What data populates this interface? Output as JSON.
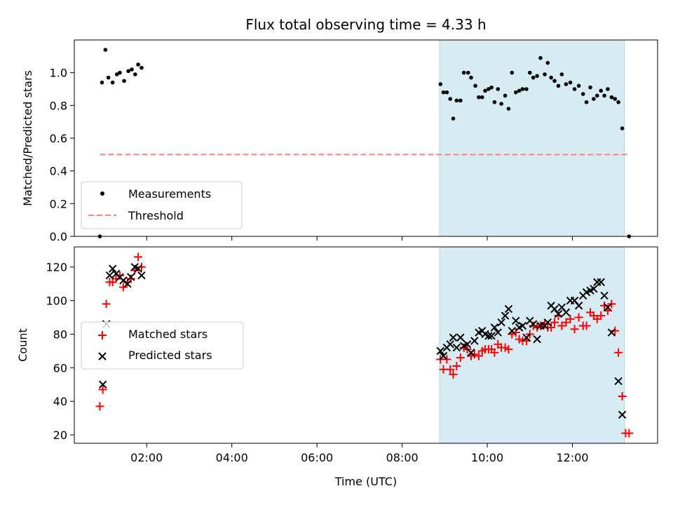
{
  "chart_data": {
    "title": "Flux total observing time = 4.33 h",
    "xlabel": "Time (UTC)",
    "x_ticks": [
      "02:00",
      "04:00",
      "06:00",
      "08:00",
      "10:00",
      "12:00"
    ],
    "x_tick_hours": [
      2,
      4,
      6,
      8,
      10,
      12
    ],
    "xlim_hours": [
      0.3,
      14.0
    ],
    "highlight_span_hours": [
      8.88,
      13.22
    ],
    "highlight_color": "#add8e6",
    "top": {
      "type": "scatter",
      "ylabel": "Matched/Predicted stars",
      "ylim": [
        0,
        1.2
      ],
      "y_ticks": [
        "0.0",
        "0.2",
        "0.4",
        "0.6",
        "0.8",
        "1.0"
      ],
      "y_tick_values": [
        0,
        0.2,
        0.4,
        0.6,
        0.8,
        1.0
      ],
      "legend": [
        "Measurements",
        "Threshold"
      ],
      "threshold": {
        "value": 0.5,
        "x_range_hours": [
          0.9,
          13.33
        ],
        "color": "#ff7f7f"
      },
      "measurement_color": "#000000",
      "measurements": [
        [
          0.9,
          0.0
        ],
        [
          0.95,
          0.94
        ],
        [
          1.03,
          1.14
        ],
        [
          1.1,
          0.97
        ],
        [
          1.2,
          0.94
        ],
        [
          1.3,
          0.99
        ],
        [
          1.37,
          1.0
        ],
        [
          1.47,
          0.95
        ],
        [
          1.57,
          1.01
        ],
        [
          1.65,
          1.02
        ],
        [
          1.73,
          0.99
        ],
        [
          1.8,
          1.05
        ],
        [
          1.88,
          1.03
        ],
        [
          8.9,
          0.93
        ],
        [
          8.97,
          0.88
        ],
        [
          9.05,
          0.88
        ],
        [
          9.13,
          0.84
        ],
        [
          9.2,
          0.72
        ],
        [
          9.28,
          0.83
        ],
        [
          9.37,
          0.83
        ],
        [
          9.45,
          1.0
        ],
        [
          9.55,
          1.0
        ],
        [
          9.62,
          0.97
        ],
        [
          9.72,
          0.92
        ],
        [
          9.8,
          0.85
        ],
        [
          9.88,
          0.85
        ],
        [
          9.95,
          0.89
        ],
        [
          10.03,
          0.9
        ],
        [
          10.1,
          0.91
        ],
        [
          10.17,
          0.82
        ],
        [
          10.25,
          0.9
        ],
        [
          10.33,
          0.81
        ],
        [
          10.42,
          0.86
        ],
        [
          10.5,
          0.78
        ],
        [
          10.58,
          1.0
        ],
        [
          10.67,
          0.88
        ],
        [
          10.75,
          0.89
        ],
        [
          10.83,
          0.9
        ],
        [
          10.92,
          0.9
        ],
        [
          11.0,
          1.0
        ],
        [
          11.08,
          0.97
        ],
        [
          11.17,
          0.98
        ],
        [
          11.25,
          1.09
        ],
        [
          11.35,
          0.99
        ],
        [
          11.42,
          1.06
        ],
        [
          11.5,
          0.97
        ],
        [
          11.58,
          0.95
        ],
        [
          11.67,
          0.92
        ],
        [
          11.75,
          0.99
        ],
        [
          11.85,
          0.93
        ],
        [
          11.95,
          0.94
        ],
        [
          12.05,
          0.9
        ],
        [
          12.15,
          0.92
        ],
        [
          12.25,
          0.87
        ],
        [
          12.33,
          0.82
        ],
        [
          12.42,
          0.91
        ],
        [
          12.5,
          0.84
        ],
        [
          12.58,
          0.86
        ],
        [
          12.67,
          0.89
        ],
        [
          12.75,
          0.86
        ],
        [
          12.83,
          0.9
        ],
        [
          12.92,
          0.85
        ],
        [
          13.0,
          0.84
        ],
        [
          13.08,
          0.82
        ],
        [
          13.17,
          0.66
        ],
        [
          13.33,
          0.0
        ]
      ]
    },
    "bottom": {
      "type": "scatter",
      "ylabel": "Count",
      "ylim": [
        15,
        132
      ],
      "y_ticks": [
        "20",
        "40",
        "60",
        "80",
        "100",
        "120"
      ],
      "y_tick_values": [
        20,
        40,
        60,
        80,
        100,
        120
      ],
      "legend": [
        "Matched stars",
        "Predicted stars"
      ],
      "matched_color": "#ff0000",
      "predicted_color": "#000000",
      "matched": [
        [
          0.9,
          37
        ],
        [
          0.97,
          47
        ],
        [
          1.05,
          98
        ],
        [
          1.13,
          111
        ],
        [
          1.2,
          111
        ],
        [
          1.28,
          113
        ],
        [
          1.37,
          115
        ],
        [
          1.45,
          108
        ],
        [
          1.55,
          111
        ],
        [
          1.63,
          113
        ],
        [
          1.72,
          118
        ],
        [
          1.8,
          126
        ],
        [
          1.88,
          120
        ],
        [
          8.9,
          65
        ],
        [
          8.97,
          59
        ],
        [
          9.05,
          65
        ],
        [
          9.13,
          59
        ],
        [
          9.2,
          56
        ],
        [
          9.28,
          61
        ],
        [
          9.37,
          66
        ],
        [
          9.45,
          72
        ],
        [
          9.53,
          71
        ],
        [
          9.62,
          67
        ],
        [
          9.7,
          68
        ],
        [
          9.8,
          67
        ],
        [
          9.88,
          70
        ],
        [
          9.95,
          71
        ],
        [
          10.03,
          71
        ],
        [
          10.1,
          71
        ],
        [
          10.17,
          69
        ],
        [
          10.25,
          74
        ],
        [
          10.33,
          72
        ],
        [
          10.42,
          72
        ],
        [
          10.5,
          71
        ],
        [
          10.58,
          80
        ],
        [
          10.67,
          81
        ],
        [
          10.75,
          77
        ],
        [
          10.83,
          76
        ],
        [
          10.92,
          76
        ],
        [
          11.0,
          80
        ],
        [
          11.08,
          85
        ],
        [
          11.17,
          84
        ],
        [
          11.25,
          85
        ],
        [
          11.35,
          86
        ],
        [
          11.42,
          84
        ],
        [
          11.5,
          84
        ],
        [
          11.58,
          87
        ],
        [
          11.67,
          91
        ],
        [
          11.75,
          85
        ],
        [
          11.85,
          87
        ],
        [
          11.95,
          89
        ],
        [
          12.05,
          83
        ],
        [
          12.15,
          90
        ],
        [
          12.25,
          85
        ],
        [
          12.33,
          85
        ],
        [
          12.42,
          93
        ],
        [
          12.5,
          91
        ],
        [
          12.58,
          89
        ],
        [
          12.67,
          91
        ],
        [
          12.75,
          97
        ],
        [
          12.83,
          94
        ],
        [
          12.92,
          98
        ],
        [
          13.0,
          82
        ],
        [
          13.08,
          69
        ],
        [
          13.17,
          43
        ],
        [
          13.25,
          21
        ],
        [
          13.33,
          21
        ]
      ],
      "predicted": [
        [
          0.97,
          50
        ],
        [
          1.05,
          86
        ],
        [
          1.13,
          115
        ],
        [
          1.2,
          119
        ],
        [
          1.28,
          116
        ],
        [
          1.37,
          114
        ],
        [
          1.45,
          112
        ],
        [
          1.55,
          110
        ],
        [
          1.63,
          114
        ],
        [
          1.72,
          120
        ],
        [
          1.8,
          119
        ],
        [
          1.88,
          115
        ],
        [
          8.9,
          70
        ],
        [
          8.97,
          67
        ],
        [
          9.05,
          72
        ],
        [
          9.13,
          74
        ],
        [
          9.2,
          78
        ],
        [
          9.28,
          72
        ],
        [
          9.37,
          78
        ],
        [
          9.45,
          73
        ],
        [
          9.53,
          74
        ],
        [
          9.62,
          69
        ],
        [
          9.7,
          76
        ],
        [
          9.8,
          81
        ],
        [
          9.88,
          82
        ],
        [
          9.95,
          80
        ],
        [
          10.03,
          79
        ],
        [
          10.1,
          79
        ],
        [
          10.17,
          84
        ],
        [
          10.25,
          81
        ],
        [
          10.33,
          87
        ],
        [
          10.42,
          91
        ],
        [
          10.5,
          95
        ],
        [
          10.58,
          82
        ],
        [
          10.67,
          88
        ],
        [
          10.75,
          84
        ],
        [
          10.83,
          85
        ],
        [
          10.92,
          78
        ],
        [
          11.0,
          88
        ],
        [
          11.08,
          86
        ],
        [
          11.17,
          77
        ],
        [
          11.25,
          85
        ],
        [
          11.35,
          85
        ],
        [
          11.42,
          87
        ],
        [
          11.5,
          97
        ],
        [
          11.58,
          95
        ],
        [
          11.67,
          92
        ],
        [
          11.75,
          96
        ],
        [
          11.85,
          93
        ],
        [
          11.95,
          100
        ],
        [
          12.05,
          100
        ],
        [
          12.15,
          97
        ],
        [
          12.25,
          103
        ],
        [
          12.33,
          105
        ],
        [
          12.42,
          106
        ],
        [
          12.5,
          107
        ],
        [
          12.58,
          111
        ],
        [
          12.67,
          111
        ],
        [
          12.75,
          103
        ],
        [
          12.83,
          96
        ],
        [
          12.92,
          81
        ],
        [
          13.08,
          52
        ],
        [
          13.17,
          32
        ]
      ]
    }
  }
}
